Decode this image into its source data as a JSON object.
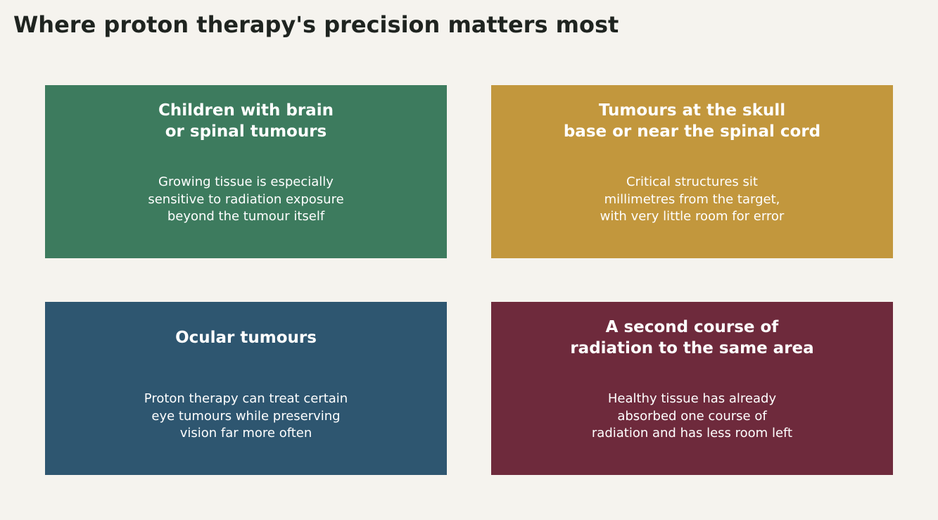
{
  "title": "Where proton therapy's precision matters most",
  "cards": [
    {
      "heading": "Children with brain\nor spinal tumours",
      "body": "Growing tissue is especially\nsensitive to radiation exposure\nbeyond the tumour itself",
      "color": "#3d7b5e"
    },
    {
      "heading": "Tumours at the skull\nbase or near the spinal cord",
      "body": "Critical structures sit\nmillimetres from the target,\nwith very little room for error",
      "color": "#c2973d"
    },
    {
      "heading": "Ocular tumours",
      "body": "Proton therapy can treat certain\neye tumours while preserving\nvision far more often",
      "color": "#2e5670"
    },
    {
      "heading": "A second course of\nradiation to the same area",
      "body": "Healthy tissue has already\nabsorbed one course of\nradiation and has less room left",
      "color": "#6e2a3c"
    }
  ]
}
